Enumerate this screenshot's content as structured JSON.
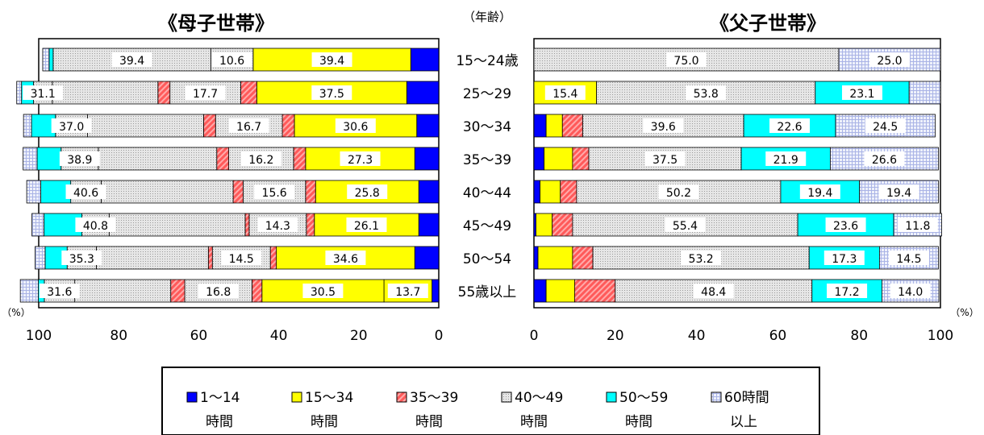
{
  "titles": {
    "left": "《母子世帯》",
    "right": "《父子世帯》",
    "age_header": "（年齢）"
  },
  "axis": {
    "unit_left": "（%）",
    "unit_right": "（%）",
    "left_ticks": [
      "100",
      "80",
      "60",
      "40",
      "20",
      "0"
    ],
    "right_ticks": [
      "0",
      "20",
      "40",
      "60",
      "80",
      "100"
    ]
  },
  "colors": {
    "h1_14": "#0000ff",
    "h15_34": "#ffff00",
    "h35_39": "#ff6666",
    "h40_49": "#d4d4d4",
    "h50_59": "#00ffff",
    "h60": "#d8e0f8"
  },
  "legend": [
    {
      "key": "h1_14",
      "line1": "1～14",
      "line2": "時間"
    },
    {
      "key": "h15_34",
      "line1": "15～34",
      "line2": "時間"
    },
    {
      "key": "h35_39",
      "line1": "35～39",
      "line2": "時間"
    },
    {
      "key": "h40_49",
      "line1": "40～49",
      "line2": "時間"
    },
    {
      "key": "h50_59",
      "line1": "50～59",
      "line2": "時間"
    },
    {
      "key": "h60",
      "line1": "60時間",
      "line2": "以上"
    }
  ],
  "chart_data": [
    {
      "type": "bar",
      "orientation": "horizontal",
      "stacked": true,
      "title": "《母子世帯》",
      "x_direction": "reversed",
      "xlim": [
        0,
        100
      ],
      "categories": [
        "15～24歳",
        "25～29",
        "30～34",
        "35～39",
        "40～44",
        "45～49",
        "50～54",
        "55歳以上"
      ],
      "series": [
        {
          "name": "1～14時間",
          "key": "h1_14",
          "values": [
            7.0,
            8.0,
            5.5,
            6.0,
            5.0,
            5.0,
            6.0,
            1.7
          ]
        },
        {
          "name": "15～34時間",
          "key": "h15_34",
          "values": [
            39.4,
            37.5,
            30.6,
            27.3,
            25.8,
            26.1,
            34.6,
            30.5
          ]
        },
        {
          "name": "35～39時間",
          "key": "h35_39",
          "values": [
            0.0,
            4.0,
            3.0,
            3.0,
            2.5,
            2.0,
            1.5,
            2.5
          ]
        },
        {
          "name": "40～49時間",
          "key": "h40_49",
          "values": [
            10.6,
            17.7,
            16.7,
            16.2,
            15.6,
            14.3,
            14.5,
            16.8
          ]
        },
        {
          "name": "50～59時間",
          "key": "h50_59",
          "values": [
            0.0,
            0.0,
            0.0,
            0.0,
            0.0,
            0.0,
            0.0,
            0.0
          ]
        },
        {
          "name": "60時間以上",
          "key": "h60",
          "values": [
            0.0,
            0.0,
            0.0,
            0.0,
            0.0,
            0.0,
            0.0,
            0.0
          ]
        }
      ],
      "segments": [
        [
          [
            "h1_14",
            7.0
          ],
          [
            "h15_34",
            39.4
          ],
          [
            "h40_49",
            10.6
          ],
          [
            "h40_49",
            39.4
          ],
          [
            "h50_59",
            1.0
          ],
          [
            "h60",
            1.6
          ]
        ],
        [
          [
            "h1_14",
            8.0
          ],
          [
            "h15_34",
            37.5
          ],
          [
            "h35_39",
            4.0
          ],
          [
            "h40_49",
            17.7
          ],
          [
            "h35_39",
            3.0
          ],
          [
            "h40_49",
            26.4
          ],
          [
            "h40_49",
            4.7
          ],
          [
            "h50_59",
            3.0
          ],
          [
            "h60",
            1.2
          ]
        ],
        [
          [
            "h1_14",
            5.5
          ],
          [
            "h15_34",
            30.6
          ],
          [
            "h35_39",
            3.0
          ],
          [
            "h40_49",
            16.7
          ],
          [
            "h35_39",
            3.0
          ],
          [
            "h40_49",
            29.0
          ],
          [
            "h40_49",
            8.0
          ],
          [
            "h50_59",
            6.0
          ],
          [
            "h60",
            2.0
          ]
        ],
        [
          [
            "h1_14",
            6.0
          ],
          [
            "h15_34",
            27.3
          ],
          [
            "h35_39",
            3.0
          ],
          [
            "h40_49",
            16.2
          ],
          [
            "h35_39",
            3.0
          ],
          [
            "h40_49",
            29.6
          ],
          [
            "h40_49",
            9.3
          ],
          [
            "h50_59",
            6.0
          ],
          [
            "h60",
            3.5
          ]
        ],
        [
          [
            "h1_14",
            5.0
          ],
          [
            "h15_34",
            25.8
          ],
          [
            "h35_39",
            2.5
          ],
          [
            "h40_49",
            15.6
          ],
          [
            "h35_39",
            2.5
          ],
          [
            "h40_49",
            33.0
          ],
          [
            "h40_49",
            7.6
          ],
          [
            "h50_59",
            7.5
          ],
          [
            "h60",
            3.5
          ]
        ],
        [
          [
            "h1_14",
            5.0
          ],
          [
            "h15_34",
            26.1
          ],
          [
            "h35_39",
            2.0
          ],
          [
            "h40_49",
            14.3
          ],
          [
            "h35_39",
            1.0
          ],
          [
            "h40_49",
            34.0
          ],
          [
            "h40_49",
            6.8
          ],
          [
            "h50_59",
            9.5
          ],
          [
            "h60",
            3.0
          ]
        ],
        [
          [
            "h1_14",
            6.0
          ],
          [
            "h15_34",
            34.6
          ],
          [
            "h35_39",
            1.5
          ],
          [
            "h40_49",
            14.5
          ],
          [
            "h35_39",
            1.0
          ],
          [
            "h40_49",
            28.0
          ],
          [
            "h40_49",
            7.3
          ],
          [
            "h50_59",
            5.5
          ],
          [
            "h60",
            2.5
          ]
        ],
        [
          [
            "h1_14",
            1.7
          ],
          [
            "h15_34",
            12.0
          ],
          [
            "h15_34",
            30.5
          ],
          [
            "h35_39",
            2.5
          ],
          [
            "h40_49",
            16.8
          ],
          [
            "h35_39",
            3.5
          ],
          [
            "h40_49",
            24.0
          ],
          [
            "h40_49",
            7.6
          ],
          [
            "h50_59",
            1.5
          ],
          [
            "h60",
            4.5
          ]
        ]
      ],
      "labels": [
        [
          "39.4",
          "10.6",
          "39.4",
          ""
        ],
        [
          "31.1",
          "17.7",
          "37.5",
          ""
        ],
        [
          "37.0",
          "16.7",
          "30.6",
          ""
        ],
        [
          "38.9",
          "16.2",
          "27.3",
          ""
        ],
        [
          "40.6",
          "15.6",
          "25.8",
          ""
        ],
        [
          "40.8",
          "14.3",
          "26.1",
          ""
        ],
        [
          "35.3",
          "14.5",
          "34.6",
          ""
        ],
        [
          "31.6",
          "16.8",
          "30.5",
          "13.7"
        ]
      ]
    },
    {
      "type": "bar",
      "orientation": "horizontal",
      "stacked": true,
      "title": "《父子世帯》",
      "xlim": [
        0,
        100
      ],
      "categories": [
        "15～24歳",
        "25～29",
        "30～34",
        "35～39",
        "40～44",
        "45～49",
        "50～54",
        "55歳以上"
      ],
      "series": [
        {
          "name": "1～14時間",
          "key": "h1_14",
          "values": [
            0.0,
            0.0,
            3.0,
            2.5,
            1.5,
            0.5,
            1.0,
            3.0
          ]
        },
        {
          "name": "15～34時間",
          "key": "h15_34",
          "values": [
            0.0,
            15.4,
            4.0,
            7.0,
            5.0,
            4.0,
            8.5,
            7.0
          ]
        },
        {
          "name": "35～39時間",
          "key": "h35_39",
          "values": [
            0.0,
            0.0,
            5.0,
            4.0,
            4.0,
            5.0,
            5.0,
            10.0
          ]
        },
        {
          "name": "40～49時間",
          "key": "h40_49",
          "values": [
            75.0,
            53.8,
            39.6,
            37.5,
            50.2,
            55.4,
            53.2,
            48.4
          ]
        },
        {
          "name": "50～59時間",
          "key": "h50_59",
          "values": [
            0.0,
            23.1,
            22.6,
            21.9,
            19.4,
            23.6,
            17.3,
            17.2
          ]
        },
        {
          "name": "60時間以上",
          "key": "h60",
          "values": [
            25.0,
            7.7,
            24.5,
            26.6,
            19.4,
            11.8,
            14.5,
            14.0
          ]
        }
      ],
      "labels": [
        [
          "",
          "75.0",
          "",
          "25.0"
        ],
        [
          "15.4",
          "53.8",
          "23.1",
          ""
        ],
        [
          "",
          "39.6",
          "22.6",
          "24.5"
        ],
        [
          "",
          "37.5",
          "21.9",
          "26.6"
        ],
        [
          "",
          "50.2",
          "19.4",
          "19.4"
        ],
        [
          "",
          "55.4",
          "23.6",
          "11.8"
        ],
        [
          "",
          "53.2",
          "17.3",
          "14.5"
        ],
        [
          "",
          "48.4",
          "17.2",
          "14.0"
        ]
      ]
    }
  ]
}
